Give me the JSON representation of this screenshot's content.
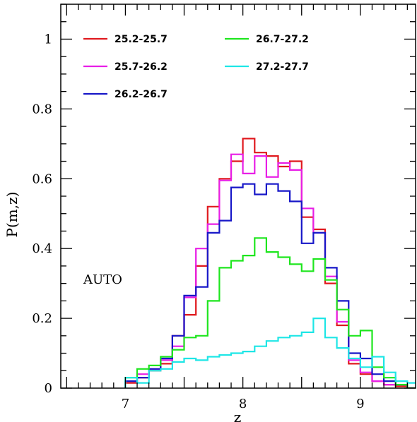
{
  "chart_data": {
    "type": "line",
    "style": "step-histogram",
    "title": "",
    "xlabel": "z",
    "ylabel": "P(m,z)",
    "xlim": [
      6.45,
      9.47
    ],
    "ylim": [
      0,
      1.1
    ],
    "xticks": [
      7,
      8,
      9
    ],
    "yticks": [
      0,
      0.2,
      0.4,
      0.6,
      0.8,
      1
    ],
    "ytick_labels": [
      "0",
      "0.2",
      "0.4",
      "0.6",
      "0.8",
      "1"
    ],
    "xtick_labels": [
      "7",
      "8",
      "9"
    ],
    "grid": false,
    "legend_placement": "top-left",
    "annotation": "AUTO",
    "bin_edges": [
      7.0,
      7.1,
      7.2,
      7.3,
      7.4,
      7.5,
      7.6,
      7.7,
      7.8,
      7.9,
      8.0,
      8.1,
      8.2,
      8.3,
      8.4,
      8.5,
      8.6,
      8.7,
      8.8,
      8.9,
      9.0,
      9.1,
      9.2,
      9.3,
      9.4,
      9.5
    ],
    "series": [
      {
        "name": "25.2-25.7",
        "color": "#e0191e",
        "values": [
          0.015,
          0.03,
          0.05,
          0.07,
          0.15,
          0.21,
          0.35,
          0.52,
          0.6,
          0.65,
          0.715,
          0.675,
          0.665,
          0.635,
          0.65,
          0.49,
          0.455,
          0.3,
          0.18,
          0.07,
          0.04,
          0.02,
          0.01,
          0.005,
          0.0
        ]
      },
      {
        "name": "25.7-26.2",
        "color": "#e81ee6",
        "values": [
          0.02,
          0.04,
          0.055,
          0.08,
          0.12,
          0.26,
          0.4,
          0.47,
          0.595,
          0.67,
          0.615,
          0.665,
          0.605,
          0.645,
          0.625,
          0.515,
          0.445,
          0.32,
          0.19,
          0.08,
          0.045,
          0.02,
          0.01,
          0.01,
          0.0
        ]
      },
      {
        "name": "26.2-26.7",
        "color": "#1717c8",
        "values": [
          0.02,
          0.03,
          0.055,
          0.085,
          0.15,
          0.265,
          0.29,
          0.445,
          0.48,
          0.575,
          0.585,
          0.555,
          0.585,
          0.565,
          0.535,
          0.415,
          0.445,
          0.345,
          0.25,
          0.1,
          0.085,
          0.04,
          0.02,
          0.01,
          0.0
        ]
      },
      {
        "name": "26.7-27.2",
        "color": "#1ee61e",
        "values": [
          0.03,
          0.055,
          0.065,
          0.09,
          0.11,
          0.145,
          0.15,
          0.25,
          0.345,
          0.365,
          0.38,
          0.43,
          0.39,
          0.375,
          0.355,
          0.335,
          0.37,
          0.31,
          0.225,
          0.15,
          0.165,
          0.06,
          0.03,
          0.01,
          0.0
        ]
      },
      {
        "name": "27.2-27.7",
        "color": "#1ee6e6",
        "values": [
          0.03,
          0.015,
          0.05,
          0.055,
          0.075,
          0.085,
          0.08,
          0.09,
          0.095,
          0.1,
          0.105,
          0.12,
          0.135,
          0.145,
          0.15,
          0.16,
          0.2,
          0.145,
          0.115,
          0.085,
          0.06,
          0.09,
          0.045,
          0.02,
          0.015
        ]
      }
    ]
  }
}
